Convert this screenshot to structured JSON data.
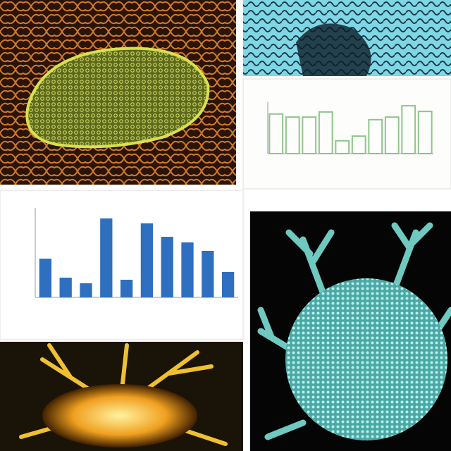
{
  "chart_data": [
    {
      "type": "bar",
      "values": [
        77,
        71,
        71,
        81,
        25,
        34,
        66,
        71,
        93,
        82
      ],
      "color": "#8fc48a",
      "ylim": [
        0,
        100
      ]
    },
    {
      "type": "bar",
      "values": [
        55,
        28,
        20,
        112,
        25,
        105,
        86,
        78,
        66,
        36
      ],
      "color": "#2f6fc0",
      "ylim": [
        0,
        127
      ]
    }
  ]
}
